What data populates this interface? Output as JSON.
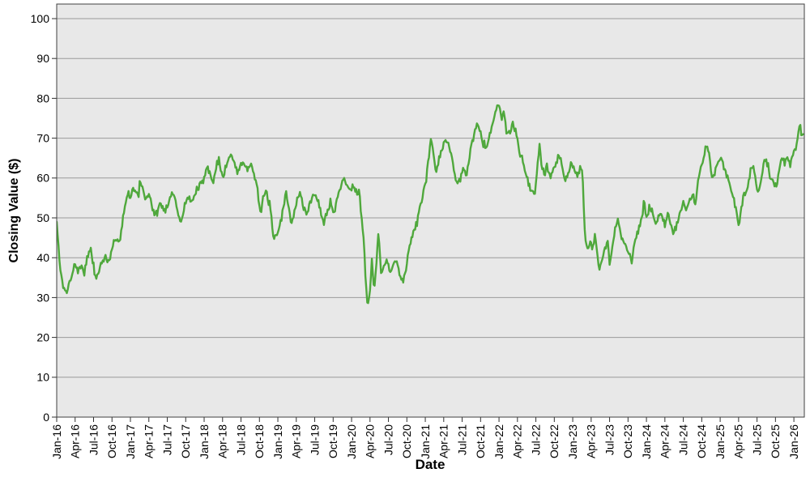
{
  "chart_data": {
    "type": "line",
    "title": "",
    "xlabel": "Date",
    "ylabel": "Closing Value ($)",
    "ylim": [
      0,
      100
    ],
    "y_ticks": [
      0,
      10,
      20,
      30,
      40,
      50,
      60,
      70,
      80,
      90,
      100
    ],
    "x_domain_months": [
      0,
      121.7
    ],
    "x_tick_interval_months": 3,
    "x_tick_labels": [
      "Jan-16",
      "Apr-16",
      "Jul-16",
      "Oct-16",
      "Jan-17",
      "Apr-17",
      "Jul-17",
      "Oct-17",
      "Jan-18",
      "Apr-18",
      "Jul-18",
      "Oct-18",
      "Jan-19",
      "Apr-19",
      "Jul-19",
      "Oct-19",
      "Jan-20",
      "Apr-20",
      "Jul-20",
      "Oct-20",
      "Jan-21",
      "Apr-21",
      "Jul-21",
      "Oct-21",
      "Jan-22",
      "Apr-22",
      "Jul-22",
      "Oct-22",
      "Jan-23",
      "Apr-23",
      "Jul-23",
      "Oct-23",
      "Jan-24",
      "Apr-24",
      "Jul-24",
      "Oct-24",
      "Jan-25",
      "Apr-25",
      "Jul-25",
      "Oct-25",
      "Jan-26"
    ],
    "grid": "horizontal",
    "legend": "none",
    "colors": {
      "line": "#4fa83c",
      "plot_bg": "#e8e8e8",
      "grid": "#9a9a9a",
      "border": "#404040",
      "tick": "#303030",
      "text": "#000000"
    },
    "line_width": 2.4,
    "noise": {
      "amplitude": 1.2,
      "step_months": 0.15,
      "seed": 7
    },
    "series": [
      {
        "points": [
          [
            0,
            49
          ],
          [
            0.4,
            40
          ],
          [
            1,
            32.5
          ],
          [
            1.6,
            31
          ],
          [
            2,
            33.5
          ],
          [
            2.5,
            36
          ],
          [
            3,
            38.5
          ],
          [
            3.5,
            36.5
          ],
          [
            4,
            38
          ],
          [
            4.5,
            36.5
          ],
          [
            5,
            40
          ],
          [
            5.5,
            42
          ],
          [
            6,
            38
          ],
          [
            6.4,
            34.5
          ],
          [
            7,
            37.5
          ],
          [
            7.5,
            39.5
          ],
          [
            8,
            40
          ],
          [
            8.5,
            38.5
          ],
          [
            9,
            42
          ],
          [
            9.5,
            44.5
          ],
          [
            10,
            43.5
          ],
          [
            10.4,
            46
          ],
          [
            10.8,
            50
          ],
          [
            11.2,
            54
          ],
          [
            11.6,
            56.5
          ],
          [
            12,
            55
          ],
          [
            12.4,
            57.5
          ],
          [
            13,
            56.5
          ],
          [
            13.3,
            55
          ],
          [
            13.6,
            60
          ],
          [
            14,
            57
          ],
          [
            14.5,
            54.5
          ],
          [
            15,
            56.5
          ],
          [
            15.5,
            53
          ],
          [
            16,
            50.5
          ],
          [
            16.5,
            52
          ],
          [
            17,
            54
          ],
          [
            17.4,
            51.5
          ],
          [
            18,
            52.5
          ],
          [
            18.5,
            55
          ],
          [
            19,
            56.5
          ],
          [
            19.5,
            53
          ],
          [
            20,
            49
          ],
          [
            20.5,
            50.5
          ],
          [
            21,
            54
          ],
          [
            21.5,
            55.5
          ],
          [
            22,
            54
          ],
          [
            22.5,
            56
          ],
          [
            23,
            57.5
          ],
          [
            23.5,
            58.5
          ],
          [
            24,
            59.5
          ],
          [
            24.4,
            63.5
          ],
          [
            25,
            61
          ],
          [
            25.4,
            58.5
          ],
          [
            26,
            63
          ],
          [
            26.4,
            65
          ],
          [
            27,
            60
          ],
          [
            27.5,
            62.5
          ],
          [
            28.3,
            66
          ],
          [
            29,
            63.5
          ],
          [
            29.5,
            61.5
          ],
          [
            30,
            63.5
          ],
          [
            30.5,
            64
          ],
          [
            31,
            62
          ],
          [
            31.5,
            63.5
          ],
          [
            32,
            62.5
          ],
          [
            32.6,
            58
          ],
          [
            33.2,
            51
          ],
          [
            33.7,
            55.5
          ],
          [
            34.2,
            56
          ],
          [
            34.7,
            53
          ],
          [
            35.1,
            48
          ],
          [
            35.4,
            44
          ],
          [
            35.8,
            45.5
          ],
          [
            36.4,
            48.5
          ],
          [
            37,
            53
          ],
          [
            37.3,
            57.5
          ],
          [
            38.2,
            48.5
          ],
          [
            38.7,
            51
          ],
          [
            39.2,
            55
          ],
          [
            39.6,
            56.5
          ],
          [
            40,
            54
          ],
          [
            40.6,
            50.5
          ],
          [
            41.2,
            53.5
          ],
          [
            41.8,
            56
          ],
          [
            42.4,
            55
          ],
          [
            43,
            51.5
          ],
          [
            43.5,
            48.5
          ],
          [
            44,
            51
          ],
          [
            44.6,
            54.5
          ],
          [
            45.2,
            51
          ],
          [
            45.8,
            56
          ],
          [
            46.4,
            58.5
          ],
          [
            46.8,
            60
          ],
          [
            47.3,
            58
          ],
          [
            47.8,
            57
          ],
          [
            48.3,
            58.5
          ],
          [
            48.8,
            56.5
          ],
          [
            49.2,
            57
          ],
          [
            49.6,
            51
          ],
          [
            50,
            45
          ],
          [
            50.3,
            33.5
          ],
          [
            50.6,
            28
          ],
          [
            51,
            31.5
          ],
          [
            51.3,
            39.5
          ],
          [
            51.7,
            31.5
          ],
          [
            52.1,
            40
          ],
          [
            52.4,
            46.5
          ],
          [
            52.8,
            36
          ],
          [
            53.3,
            38
          ],
          [
            53.8,
            39.5
          ],
          [
            54.3,
            36.5
          ],
          [
            54.8,
            38.5
          ],
          [
            55.3,
            39.5
          ],
          [
            55.8,
            36
          ],
          [
            56.3,
            33.5
          ],
          [
            56.8,
            37
          ],
          [
            57.3,
            42
          ],
          [
            57.8,
            45
          ],
          [
            58.3,
            47
          ],
          [
            58.8,
            50
          ],
          [
            59.3,
            53
          ],
          [
            59.7,
            56
          ],
          [
            60.2,
            60
          ],
          [
            60.9,
            70
          ],
          [
            61.3,
            66
          ],
          [
            61.7,
            62
          ],
          [
            62.2,
            64.5
          ],
          [
            62.7,
            67.5
          ],
          [
            63.2,
            69.5
          ],
          [
            63.7,
            69
          ],
          [
            64.2,
            66
          ],
          [
            64.7,
            61.5
          ],
          [
            65.2,
            58.5
          ],
          [
            65.7,
            60
          ],
          [
            66.2,
            63
          ],
          [
            66.7,
            60
          ],
          [
            67.3,
            67
          ],
          [
            67.8,
            70
          ],
          [
            68.4,
            74.5
          ],
          [
            68.9,
            72
          ],
          [
            69.4,
            69
          ],
          [
            70,
            67.5
          ],
          [
            70.5,
            71
          ],
          [
            71,
            74
          ],
          [
            71.5,
            77
          ],
          [
            72,
            79
          ],
          [
            72.4,
            74.5
          ],
          [
            72.8,
            76.5
          ],
          [
            73.3,
            70.5
          ],
          [
            73.8,
            72
          ],
          [
            74.3,
            74
          ],
          [
            74.8,
            71
          ],
          [
            75.3,
            67
          ],
          [
            75.8,
            64.5
          ],
          [
            76.3,
            61
          ],
          [
            76.8,
            59
          ],
          [
            77.3,
            57
          ],
          [
            77.9,
            56
          ],
          [
            78.3,
            64
          ],
          [
            78.6,
            68
          ],
          [
            79,
            63
          ],
          [
            79.4,
            61
          ],
          [
            79.8,
            63.5
          ],
          [
            80.3,
            60
          ],
          [
            80.8,
            62
          ],
          [
            81.3,
            64
          ],
          [
            81.8,
            66.5
          ],
          [
            82.3,
            63
          ],
          [
            82.8,
            59
          ],
          [
            83.3,
            61.5
          ],
          [
            83.8,
            63.5
          ],
          [
            84.3,
            62
          ],
          [
            84.8,
            60.5
          ],
          [
            85.2,
            63
          ],
          [
            85.6,
            62
          ],
          [
            86,
            45
          ],
          [
            86.4,
            42
          ],
          [
            86.8,
            44
          ],
          [
            87.2,
            42
          ],
          [
            87.6,
            45.5
          ],
          [
            88,
            41
          ],
          [
            88.3,
            36.5
          ],
          [
            88.8,
            39.5
          ],
          [
            89.3,
            42.5
          ],
          [
            89.7,
            44
          ],
          [
            90,
            38
          ],
          [
            90.4,
            42
          ],
          [
            90.9,
            47
          ],
          [
            91.3,
            50
          ],
          [
            91.8,
            46
          ],
          [
            92.3,
            44
          ],
          [
            92.8,
            42.5
          ],
          [
            93.2,
            41
          ],
          [
            93.6,
            39.5
          ],
          [
            94.1,
            44
          ],
          [
            94.6,
            46.5
          ],
          [
            95.1,
            49
          ],
          [
            95.6,
            54
          ],
          [
            96,
            50.5
          ],
          [
            96.5,
            52.5
          ],
          [
            97,
            51.5
          ],
          [
            97.5,
            48.5
          ],
          [
            98,
            50
          ],
          [
            98.5,
            51.5
          ],
          [
            99,
            48
          ],
          [
            99.5,
            50.5
          ],
          [
            100,
            47.5
          ],
          [
            100.5,
            46
          ],
          [
            101,
            49
          ],
          [
            101.5,
            52
          ],
          [
            102,
            53.5
          ],
          [
            102.5,
            52
          ],
          [
            103,
            54
          ],
          [
            103.5,
            56
          ],
          [
            104,
            53.5
          ],
          [
            104.4,
            60
          ],
          [
            104.8,
            62
          ],
          [
            105.3,
            65
          ],
          [
            105.8,
            68.5
          ],
          [
            106.3,
            65
          ],
          [
            106.8,
            59.5
          ],
          [
            107.3,
            62.5
          ],
          [
            107.8,
            64.5
          ],
          [
            108.2,
            65.5
          ],
          [
            108.7,
            62.5
          ],
          [
            109.2,
            60
          ],
          [
            109.7,
            57.5
          ],
          [
            110.2,
            55
          ],
          [
            110.7,
            51
          ],
          [
            111.1,
            48
          ],
          [
            111.5,
            53
          ],
          [
            112,
            56.5
          ],
          [
            112.5,
            58
          ],
          [
            113,
            62
          ],
          [
            113.4,
            63
          ],
          [
            113.9,
            58.5
          ],
          [
            114.3,
            56.5
          ],
          [
            114.8,
            61
          ],
          [
            115.2,
            64.5
          ],
          [
            115.7,
            63.5
          ],
          [
            116.2,
            60
          ],
          [
            116.7,
            58.5
          ],
          [
            117.1,
            58
          ],
          [
            117.6,
            62
          ],
          [
            118.1,
            65.5
          ],
          [
            118.5,
            63.5
          ],
          [
            119,
            65
          ],
          [
            119.4,
            63.5
          ],
          [
            119.9,
            66.5
          ],
          [
            120.3,
            68
          ],
          [
            120.7,
            71
          ],
          [
            121,
            74
          ],
          [
            121.3,
            70
          ],
          [
            121.6,
            71.5
          ]
        ]
      }
    ]
  }
}
